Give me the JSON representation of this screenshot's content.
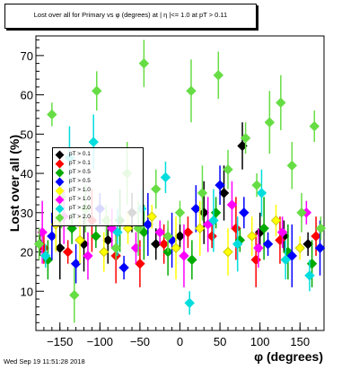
{
  "chart_data": {
    "type": "scatter",
    "title": "Lost over all for Primary vs φ (degrees) at | η |<= 1.0 at pT > 0.11",
    "xlabel": "φ (degrees)",
    "ylabel": "Lost over all (%)",
    "xlim": [
      -180,
      180
    ],
    "ylim": [
      0,
      75
    ],
    "xticks": [
      -150,
      -100,
      -50,
      0,
      50,
      100,
      150
    ],
    "yticks": [
      10,
      20,
      30,
      40,
      50,
      60,
      70
    ],
    "grid": false,
    "legend_position": "left",
    "series": [
      {
        "name": "pT > 0.1",
        "color": "#000000",
        "values": [
          {
            "x": -175,
            "y": 22
          },
          {
            "x": -150,
            "y": 21
          },
          {
            "x": -120,
            "y": 22
          },
          {
            "x": -90,
            "y": 23
          },
          {
            "x": -60,
            "y": 30
          },
          {
            "x": -30,
            "y": 22
          },
          {
            "x": 0,
            "y": 24
          },
          {
            "x": 30,
            "y": 30
          },
          {
            "x": 55,
            "y": 35
          },
          {
            "x": 78,
            "y": 47
          },
          {
            "x": 100,
            "y": 25
          },
          {
            "x": 130,
            "y": 24
          },
          {
            "x": 160,
            "y": 22
          }
        ]
      },
      {
        "name": "pT > 0.1",
        "color": "#ff0000",
        "values": [
          {
            "x": -170,
            "y": 21
          },
          {
            "x": -140,
            "y": 20
          },
          {
            "x": -110,
            "y": 28
          },
          {
            "x": -80,
            "y": 19
          },
          {
            "x": -50,
            "y": 17
          },
          {
            "x": -20,
            "y": 22
          },
          {
            "x": 10,
            "y": 25
          },
          {
            "x": 40,
            "y": 24
          },
          {
            "x": 70,
            "y": 26
          },
          {
            "x": 95,
            "y": 18
          },
          {
            "x": 125,
            "y": 23
          },
          {
            "x": 170,
            "y": 24
          }
        ]
      },
      {
        "name": "pT > 0.5",
        "color": "#00aa00",
        "values": [
          {
            "x": -165,
            "y": 18
          },
          {
            "x": -135,
            "y": 26
          },
          {
            "x": -105,
            "y": 24
          },
          {
            "x": -75,
            "y": 28
          },
          {
            "x": -45,
            "y": 25
          },
          {
            "x": -15,
            "y": 20
          },
          {
            "x": 15,
            "y": 18
          },
          {
            "x": 45,
            "y": 30
          },
          {
            "x": 75,
            "y": 23
          },
          {
            "x": 105,
            "y": 26
          },
          {
            "x": 135,
            "y": 20
          },
          {
            "x": 165,
            "y": 17
          }
        ]
      },
      {
        "name": "pT > 0.5",
        "color": "#0000ff",
        "values": [
          {
            "x": -160,
            "y": 24
          },
          {
            "x": -130,
            "y": 17
          },
          {
            "x": -100,
            "y": 31
          },
          {
            "x": -70,
            "y": 16
          },
          {
            "x": -40,
            "y": 27
          },
          {
            "x": -10,
            "y": 23
          },
          {
            "x": 20,
            "y": 31
          },
          {
            "x": 50,
            "y": 37
          },
          {
            "x": 80,
            "y": 30
          },
          {
            "x": 110,
            "y": 22
          },
          {
            "x": 140,
            "y": 19
          },
          {
            "x": 175,
            "y": 21
          }
        ]
      },
      {
        "name": "pT > 1.0",
        "color": "#ffff00",
        "values": [
          {
            "x": -155,
            "y": 27
          },
          {
            "x": -125,
            "y": 23
          },
          {
            "x": -95,
            "y": 20
          },
          {
            "x": -65,
            "y": 26
          },
          {
            "x": -35,
            "y": 29
          },
          {
            "x": -5,
            "y": 21
          },
          {
            "x": 25,
            "y": 26
          },
          {
            "x": 60,
            "y": 20
          },
          {
            "x": 90,
            "y": 24
          },
          {
            "x": 120,
            "y": 28
          },
          {
            "x": 150,
            "y": 21
          }
        ]
      },
      {
        "name": "pT > 1.0",
        "color": "#ff00ff",
        "values": [
          {
            "x": -172,
            "y": 25
          },
          {
            "x": -145,
            "y": 29
          },
          {
            "x": -115,
            "y": 19
          },
          {
            "x": -85,
            "y": 26
          },
          {
            "x": -55,
            "y": 21
          },
          {
            "x": -25,
            "y": 25
          },
          {
            "x": 5,
            "y": 19
          },
          {
            "x": 35,
            "y": 27
          },
          {
            "x": 65,
            "y": 32
          },
          {
            "x": 98,
            "y": 21
          },
          {
            "x": 128,
            "y": 25
          },
          {
            "x": 158,
            "y": 30
          }
        ]
      },
      {
        "name": "pT > 2.0",
        "color": "#00dddd",
        "values": [
          {
            "x": -168,
            "y": 19
          },
          {
            "x": -138,
            "y": 44
          },
          {
            "x": -108,
            "y": 48
          },
          {
            "x": -78,
            "y": 25
          },
          {
            "x": -48,
            "y": 31
          },
          {
            "x": -18,
            "y": 39
          },
          {
            "x": 12,
            "y": 7
          },
          {
            "x": 42,
            "y": 28
          },
          {
            "x": 72,
            "y": 22
          },
          {
            "x": 102,
            "y": 35
          },
          {
            "x": 132,
            "y": 18
          },
          {
            "x": 162,
            "y": 14
          }
        ]
      },
      {
        "name": "pT > 2.0",
        "color": "#66dd44",
        "values": [
          {
            "x": -176,
            "y": 22
          },
          {
            "x": -160,
            "y": 55
          },
          {
            "x": -148,
            "y": 34
          },
          {
            "x": -132,
            "y": 9
          },
          {
            "x": -118,
            "y": 31
          },
          {
            "x": -104,
            "y": 61
          },
          {
            "x": -92,
            "y": 28
          },
          {
            "x": -80,
            "y": 21
          },
          {
            "x": -66,
            "y": 40
          },
          {
            "x": -52,
            "y": 26
          },
          {
            "x": -45,
            "y": 68
          },
          {
            "x": -30,
            "y": 36
          },
          {
            "x": -15,
            "y": 24
          },
          {
            "x": 0,
            "y": 30
          },
          {
            "x": 14,
            "y": 61
          },
          {
            "x": 28,
            "y": 35
          },
          {
            "x": 48,
            "y": 65
          },
          {
            "x": 60,
            "y": 41
          },
          {
            "x": 82,
            "y": 49
          },
          {
            "x": 96,
            "y": 37
          },
          {
            "x": 112,
            "y": 53
          },
          {
            "x": 126,
            "y": 58
          },
          {
            "x": 140,
            "y": 42
          },
          {
            "x": 152,
            "y": 30
          },
          {
            "x": 168,
            "y": 52
          },
          {
            "x": 176,
            "y": 26
          }
        ]
      }
    ]
  },
  "footer": {
    "timestamp": "Wed Sep 19 11:51:28 2018"
  }
}
